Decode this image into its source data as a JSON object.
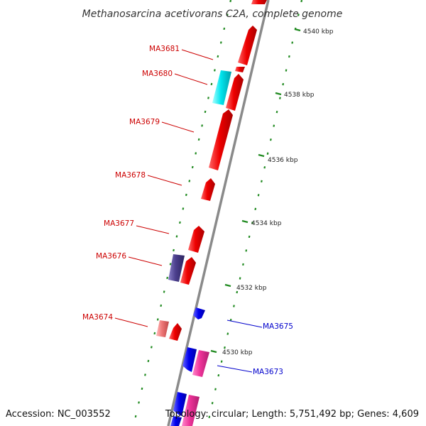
{
  "title": "Methanosarcina acetivorans C2A, complete genome",
  "scale_labels": [
    "4540 kbp",
    "4538 kbp",
    "4536 kbp",
    "4534 kbp",
    "4532 kbp",
    "4530 kbp"
  ],
  "genes": {
    "ma3681": "MA3681",
    "ma3680": "MA3680",
    "ma3679": "MA3679",
    "ma3678": "MA3678",
    "ma3677": "MA3677",
    "ma3676": "MA3676",
    "ma3674": "MA3674",
    "ma3675": "MA3675",
    "ma3673": "MA3673"
  },
  "footer": {
    "accession": "Accession: NC_003552",
    "topology": "Topology: circular; Length: 5,751,492 bp; Genes: 4,609"
  },
  "colors": {
    "forward_cds": "#ee0000",
    "reverse_cds": "#0000ee",
    "cyan_feature": "#00e5ee",
    "purple_feature": "#4b3f8c",
    "pink_feature": "#ee3399",
    "light_red_feature": "#ee7777",
    "backbone": "#888888",
    "ticks": "#228b22"
  }
}
